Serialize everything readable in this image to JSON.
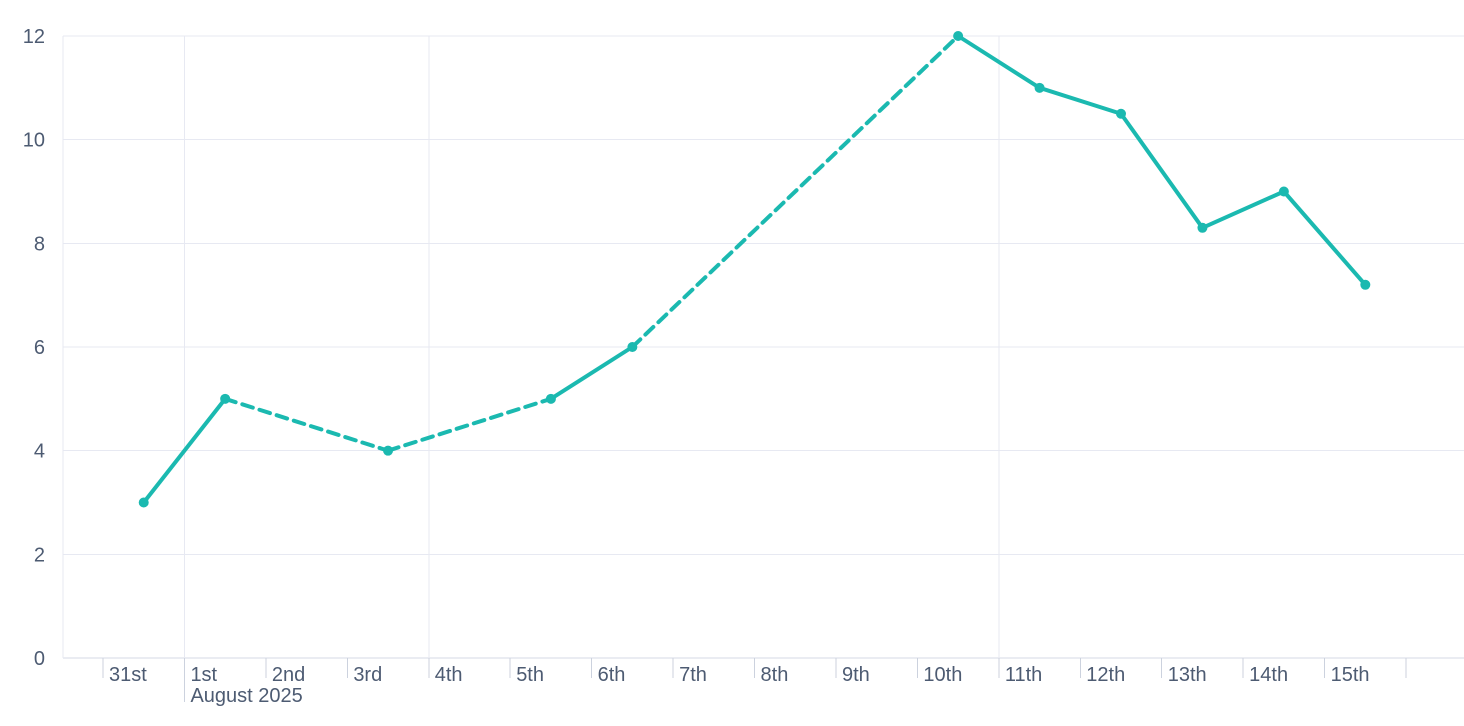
{
  "chart_data": {
    "type": "line",
    "x_axis": {
      "unit": "day",
      "tick_labels": [
        "31st",
        "1st",
        "2nd",
        "3rd",
        "4th",
        "5th",
        "6th",
        "7th",
        "8th",
        "9th",
        "10th",
        "11th",
        "12th",
        "13th",
        "14th",
        "15th"
      ],
      "month_label": "August 2025",
      "month_label_at": "1st",
      "vertical_gridlines_at": [
        "1st",
        "4th",
        "11th"
      ]
    },
    "y_axis": {
      "min": 0,
      "max": 12,
      "tick_interval": 2,
      "tick_labels": [
        "0",
        "2",
        "4",
        "6",
        "8",
        "10",
        "12"
      ],
      "grid": "on"
    },
    "series": [
      {
        "name": "daily-values",
        "color": "#1bb9b0",
        "marker": "circle",
        "points": [
          {
            "x": "31st",
            "y": 3
          },
          {
            "x": "1st",
            "y": 5
          },
          {
            "x": "3rd",
            "y": 4
          },
          {
            "x": "5th",
            "y": 5
          },
          {
            "x": "6th",
            "y": 6
          },
          {
            "x": "10th",
            "y": 12
          },
          {
            "x": "11th",
            "y": 11
          },
          {
            "x": "12th",
            "y": 10.5
          },
          {
            "x": "13th",
            "y": 8.3
          },
          {
            "x": "14th",
            "y": 9
          },
          {
            "x": "15th",
            "y": 7.2
          }
        ],
        "dashed_segments": [
          [
            "1st",
            "3rd"
          ],
          [
            "3rd",
            "5th"
          ],
          [
            "6th",
            "10th"
          ]
        ]
      }
    ],
    "legend": "none",
    "colors": {
      "series": "#1bb9b0",
      "gridline": "#e7e9f2",
      "axis_line": "#d6dae4",
      "tick_mark": "#ccd2de",
      "label": "#4d5b72",
      "background": "#ffffff"
    }
  }
}
